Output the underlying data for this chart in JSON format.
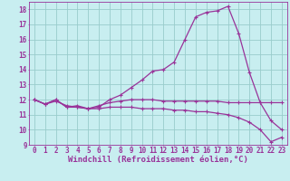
{
  "xlabel": "Windchill (Refroidissement éolien,°C)",
  "background_color": "#c8eef0",
  "grid_color": "#99cccc",
  "line_color": "#993399",
  "x_hours": [
    0,
    1,
    2,
    3,
    4,
    5,
    6,
    7,
    8,
    9,
    10,
    11,
    12,
    13,
    14,
    15,
    16,
    17,
    18,
    19,
    20,
    21,
    22,
    23
  ],
  "line1": [
    12.0,
    11.7,
    12.0,
    11.5,
    11.6,
    11.4,
    11.5,
    12.0,
    12.3,
    12.8,
    13.3,
    13.9,
    14.0,
    14.5,
    16.0,
    17.5,
    17.8,
    17.9,
    18.2,
    16.4,
    13.8,
    11.8,
    10.6,
    10.0
  ],
  "line2": [
    12.0,
    11.7,
    12.0,
    11.5,
    11.5,
    11.4,
    11.6,
    11.8,
    11.9,
    12.0,
    12.0,
    12.0,
    11.9,
    11.9,
    11.9,
    11.9,
    11.9,
    11.9,
    11.8,
    11.8,
    11.8,
    11.8,
    11.8,
    11.8
  ],
  "line3": [
    12.0,
    11.7,
    11.9,
    11.6,
    11.5,
    11.4,
    11.4,
    11.5,
    11.5,
    11.5,
    11.4,
    11.4,
    11.4,
    11.3,
    11.3,
    11.2,
    11.2,
    11.1,
    11.0,
    10.8,
    10.5,
    10.0,
    9.2,
    9.5
  ],
  "ylim_min": 9,
  "ylim_max": 18.5,
  "ytick_min": 9,
  "ytick_max": 18,
  "marker": "+",
  "markersize": 3,
  "linewidth": 0.9,
  "xlabel_fontsize": 6.5,
  "tick_fontsize": 5.5
}
